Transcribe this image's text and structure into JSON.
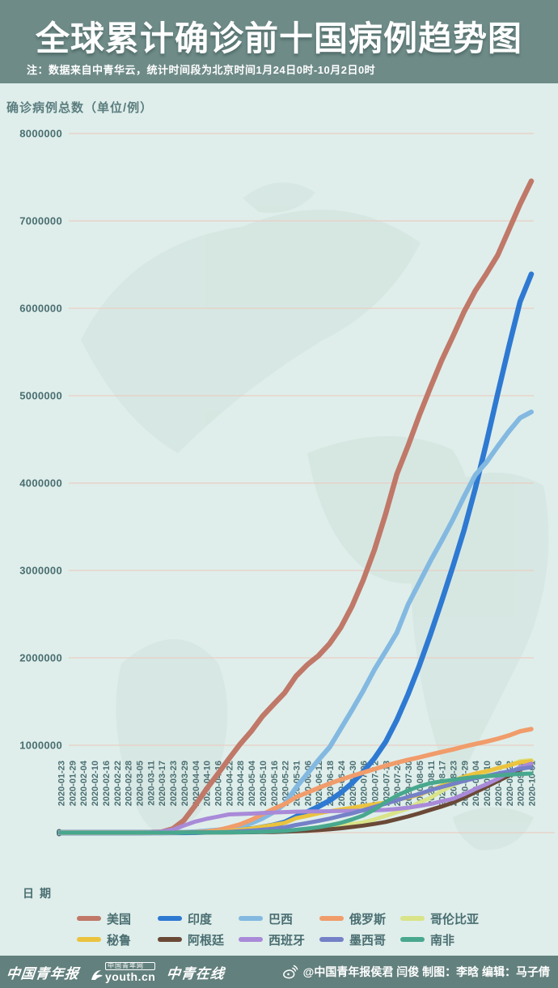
{
  "header": {
    "title": "全球累计确诊前十国病例趋势图",
    "note": "注：数据来自中青华云，统计时间段为北京时间1月24日0时-10月2日0时"
  },
  "theme": {
    "banner_bg": "#6e8b88",
    "footer_bg": "#62807d",
    "chart_bg": "#dfeeeb",
    "grid_color": "#e9cfc3",
    "tick_color": "#4a6e71",
    "axis_label_color": "#5b7d7f",
    "text_white": "#ffffff",
    "map_color": "#cfe2dc"
  },
  "chart_data": {
    "type": "line",
    "title": "全球累计确诊前十国病例趋势图",
    "ylabel": "确诊病例总数（单位/例）",
    "xlabel": "日期",
    "ylim": [
      0,
      8000000
    ],
    "yticks": [
      0,
      1000000,
      2000000,
      3000000,
      4000000,
      5000000,
      6000000,
      7000000,
      8000000
    ],
    "grid": "horizontal",
    "legend_position": "bottom",
    "legend_rows": [
      [
        "美国",
        "印度",
        "巴西",
        "俄罗斯",
        "哥伦比亚"
      ],
      [
        "秘鲁",
        "阿根廷",
        "西班牙",
        "墨西哥",
        "南非"
      ]
    ],
    "x": [
      "2020-01-23",
      "2020-01-29",
      "2020-02-04",
      "2020-02-10",
      "2020-02-16",
      "2020-02-22",
      "2020-02-28",
      "2020-03-05",
      "2020-03-11",
      "2020-03-17",
      "2020-03-23",
      "2020-03-29",
      "2020-04-04",
      "2020-04-10",
      "2020-04-16",
      "2020-04-22",
      "2020-04-28",
      "2020-05-04",
      "2020-05-10",
      "2020-05-16",
      "2020-05-22",
      "2020-05-31",
      "2020-06-06",
      "2020-06-12",
      "2020-06-18",
      "2020-06-24",
      "2020-06-30",
      "2020-07-06",
      "2020-07-12",
      "2020-07-18",
      "2020-07-24",
      "2020-07-30",
      "2020-08-05",
      "2020-08-11",
      "2020-08-17",
      "2020-08-23",
      "2020-08-29",
      "2020-09-04",
      "2020-09-10",
      "2020-09-16",
      "2020-09-22",
      "2020-09-28",
      "2020-10-01"
    ],
    "series": [
      {
        "name": "美国",
        "color": "#c07868",
        "width": 6.5,
        "values": [
          1,
          5,
          11,
          12,
          15,
          35,
          60,
          220,
          1300,
          6400,
          43800,
          140900,
          308850,
          496500,
          667800,
          842600,
          1010500,
          1158050,
          1329800,
          1467800,
          1600500,
          1790200,
          1920100,
          2023350,
          2163300,
          2347100,
          2590600,
          2888700,
          3236100,
          3647700,
          4100900,
          4426900,
          4771850,
          5094400,
          5403200,
          5677100,
          5961100,
          6200200,
          6397200,
          6606700,
          6897700,
          7190400,
          7455600
        ]
      },
      {
        "name": "印度",
        "color": "#2e79d2",
        "width": 6.5,
        "values": [
          0,
          1,
          3,
          3,
          3,
          3,
          3,
          30,
          62,
          140,
          500,
          1020,
          3100,
          6760,
          12760,
          21390,
          31330,
          42840,
          62940,
          85940,
          118450,
          182140,
          236700,
          297540,
          366950,
          456180,
          566840,
          697400,
          849550,
          1038720,
          1287950,
          1583790,
          1908250,
          2268680,
          2647660,
          3044940,
          3463970,
          3936750,
          4465860,
          5020360,
          5562660,
          6074700,
          6392050
        ]
      },
      {
        "name": "巴西",
        "color": "#83b9e1",
        "width": 6,
        "values": [
          0,
          0,
          0,
          0,
          0,
          0,
          1,
          8,
          34,
          290,
          1920,
          4260,
          10280,
          19640,
          30420,
          45760,
          72900,
          107780,
          162700,
          233140,
          330890,
          514850,
          672850,
          829900,
          978140,
          1188630,
          1402040,
          1623280,
          1864680,
          2074860,
          2287470,
          2610100,
          2859070,
          3109630,
          3340200,
          3582360,
          3846150,
          4091800,
          4238450,
          4419080,
          4591600,
          4745460,
          4813590
        ]
      },
      {
        "name": "俄罗斯",
        "color": "#f19c6b",
        "width": 5.5,
        "values": [
          0,
          0,
          2,
          2,
          2,
          2,
          2,
          4,
          20,
          114,
          440,
          1530,
          4730,
          11920,
          27940,
          57990,
          93560,
          145260,
          209690,
          272040,
          326450,
          405840,
          458100,
          511420,
          561090,
          606880,
          647850,
          687860,
          727160,
          765440,
          800850,
          832000,
          861420,
          892650,
          922850,
          951900,
          985350,
          1015110,
          1042840,
          1073850,
          1111600,
          1159600,
          1185250
        ]
      },
      {
        "name": "哥伦比亚",
        "color": "#d9e388",
        "width": 5,
        "values": [
          0,
          0,
          0,
          0,
          0,
          0,
          0,
          0,
          3,
          65,
          280,
          700,
          1400,
          2470,
          3100,
          4150,
          5600,
          7970,
          10500,
          14220,
          18330,
          29380,
          38030,
          46860,
          60210,
          77110,
          97840,
          117400,
          150440,
          190700,
          233540,
          276050,
          345710,
          397620,
          476660,
          541140,
          599900,
          650060,
          694660,
          736370,
          770430,
          818200,
          829680
        ]
      },
      {
        "name": "秘鲁",
        "color": "#ebc33e",
        "width": 5,
        "values": [
          0,
          0,
          0,
          0,
          0,
          0,
          0,
          1,
          17,
          117,
          395,
          850,
          1750,
          5900,
          12490,
          19250,
          31190,
          47370,
          67310,
          88540,
          111700,
          164480,
          191760,
          220750,
          244390,
          264690,
          285210,
          305700,
          326250,
          345540,
          375960,
          400680,
          433100,
          483130,
          535950,
          594330,
          639430,
          676850,
          702780,
          738020,
          768900,
          805300,
          818300
        ]
      },
      {
        "name": "阿根廷",
        "color": "#6a4937",
        "width": 5,
        "values": [
          0,
          0,
          0,
          0,
          0,
          0,
          0,
          1,
          19,
          65,
          300,
          745,
          1450,
          1975,
          2570,
          3150,
          4000,
          4880,
          6030,
          7800,
          10650,
          16850,
          21040,
          28760,
          37510,
          49850,
          64520,
          80440,
          100150,
          122520,
          153500,
          185370,
          221150,
          260900,
          299120,
          342150,
          401230,
          461880,
          524200,
          589000,
          652170,
          723130,
          765000
        ]
      },
      {
        "name": "西班牙",
        "color": "#a98ad8",
        "width": 5,
        "values": [
          0,
          0,
          1,
          2,
          2,
          2,
          32,
          260,
          2280,
          11750,
          33090,
          80110,
          126170,
          157020,
          182820,
          208390,
          212920,
          218010,
          224390,
          230180,
          234820,
          239430,
          241310,
          243290,
          245270,
          247090,
          249270,
          252130,
          254970,
          260250,
          272420,
          285430,
          305770,
          326610,
          359080,
          386050,
          439290,
          498990,
          554140,
          614360,
          682270,
          748270,
          789930
        ]
      },
      {
        "name": "墨西哥",
        "color": "#7480c7",
        "width": 5,
        "values": [
          0,
          0,
          0,
          0,
          0,
          0,
          2,
          5,
          11,
          93,
          370,
          850,
          1890,
          3440,
          5850,
          9500,
          15530,
          23470,
          33460,
          45030,
          59570,
          87510,
          110030,
          133970,
          159790,
          191410,
          220660,
          256850,
          295270,
          331300,
          370710,
          408450,
          443810,
          485840,
          522160,
          556220,
          591710,
          623090,
          647500,
          676490,
          700580,
          730320,
          748320
        ]
      },
      {
        "name": "南非",
        "color": "#48a88e",
        "width": 5,
        "values": [
          0,
          0,
          0,
          0,
          0,
          0,
          0,
          1,
          13,
          85,
          400,
          1280,
          1590,
          2000,
          2510,
          3470,
          4790,
          7220,
          10020,
          14360,
          19140,
          32680,
          45970,
          61930,
          83890,
          111800,
          151210,
          196750,
          264180,
          350880,
          421990,
          482170,
          529880,
          566110,
          587350,
          603340,
          622550,
          636880,
          646400,
          653440,
          663280,
          671710,
          676080
        ]
      }
    ]
  },
  "footer": {
    "logos": [
      "中国青年报",
      {
        "badge": "中国青年网",
        "text": "youth.cn"
      },
      "中青在线"
    ],
    "credits": "@中国青年报侯君 闫俊 制图：李晗 编辑：马子倩"
  }
}
